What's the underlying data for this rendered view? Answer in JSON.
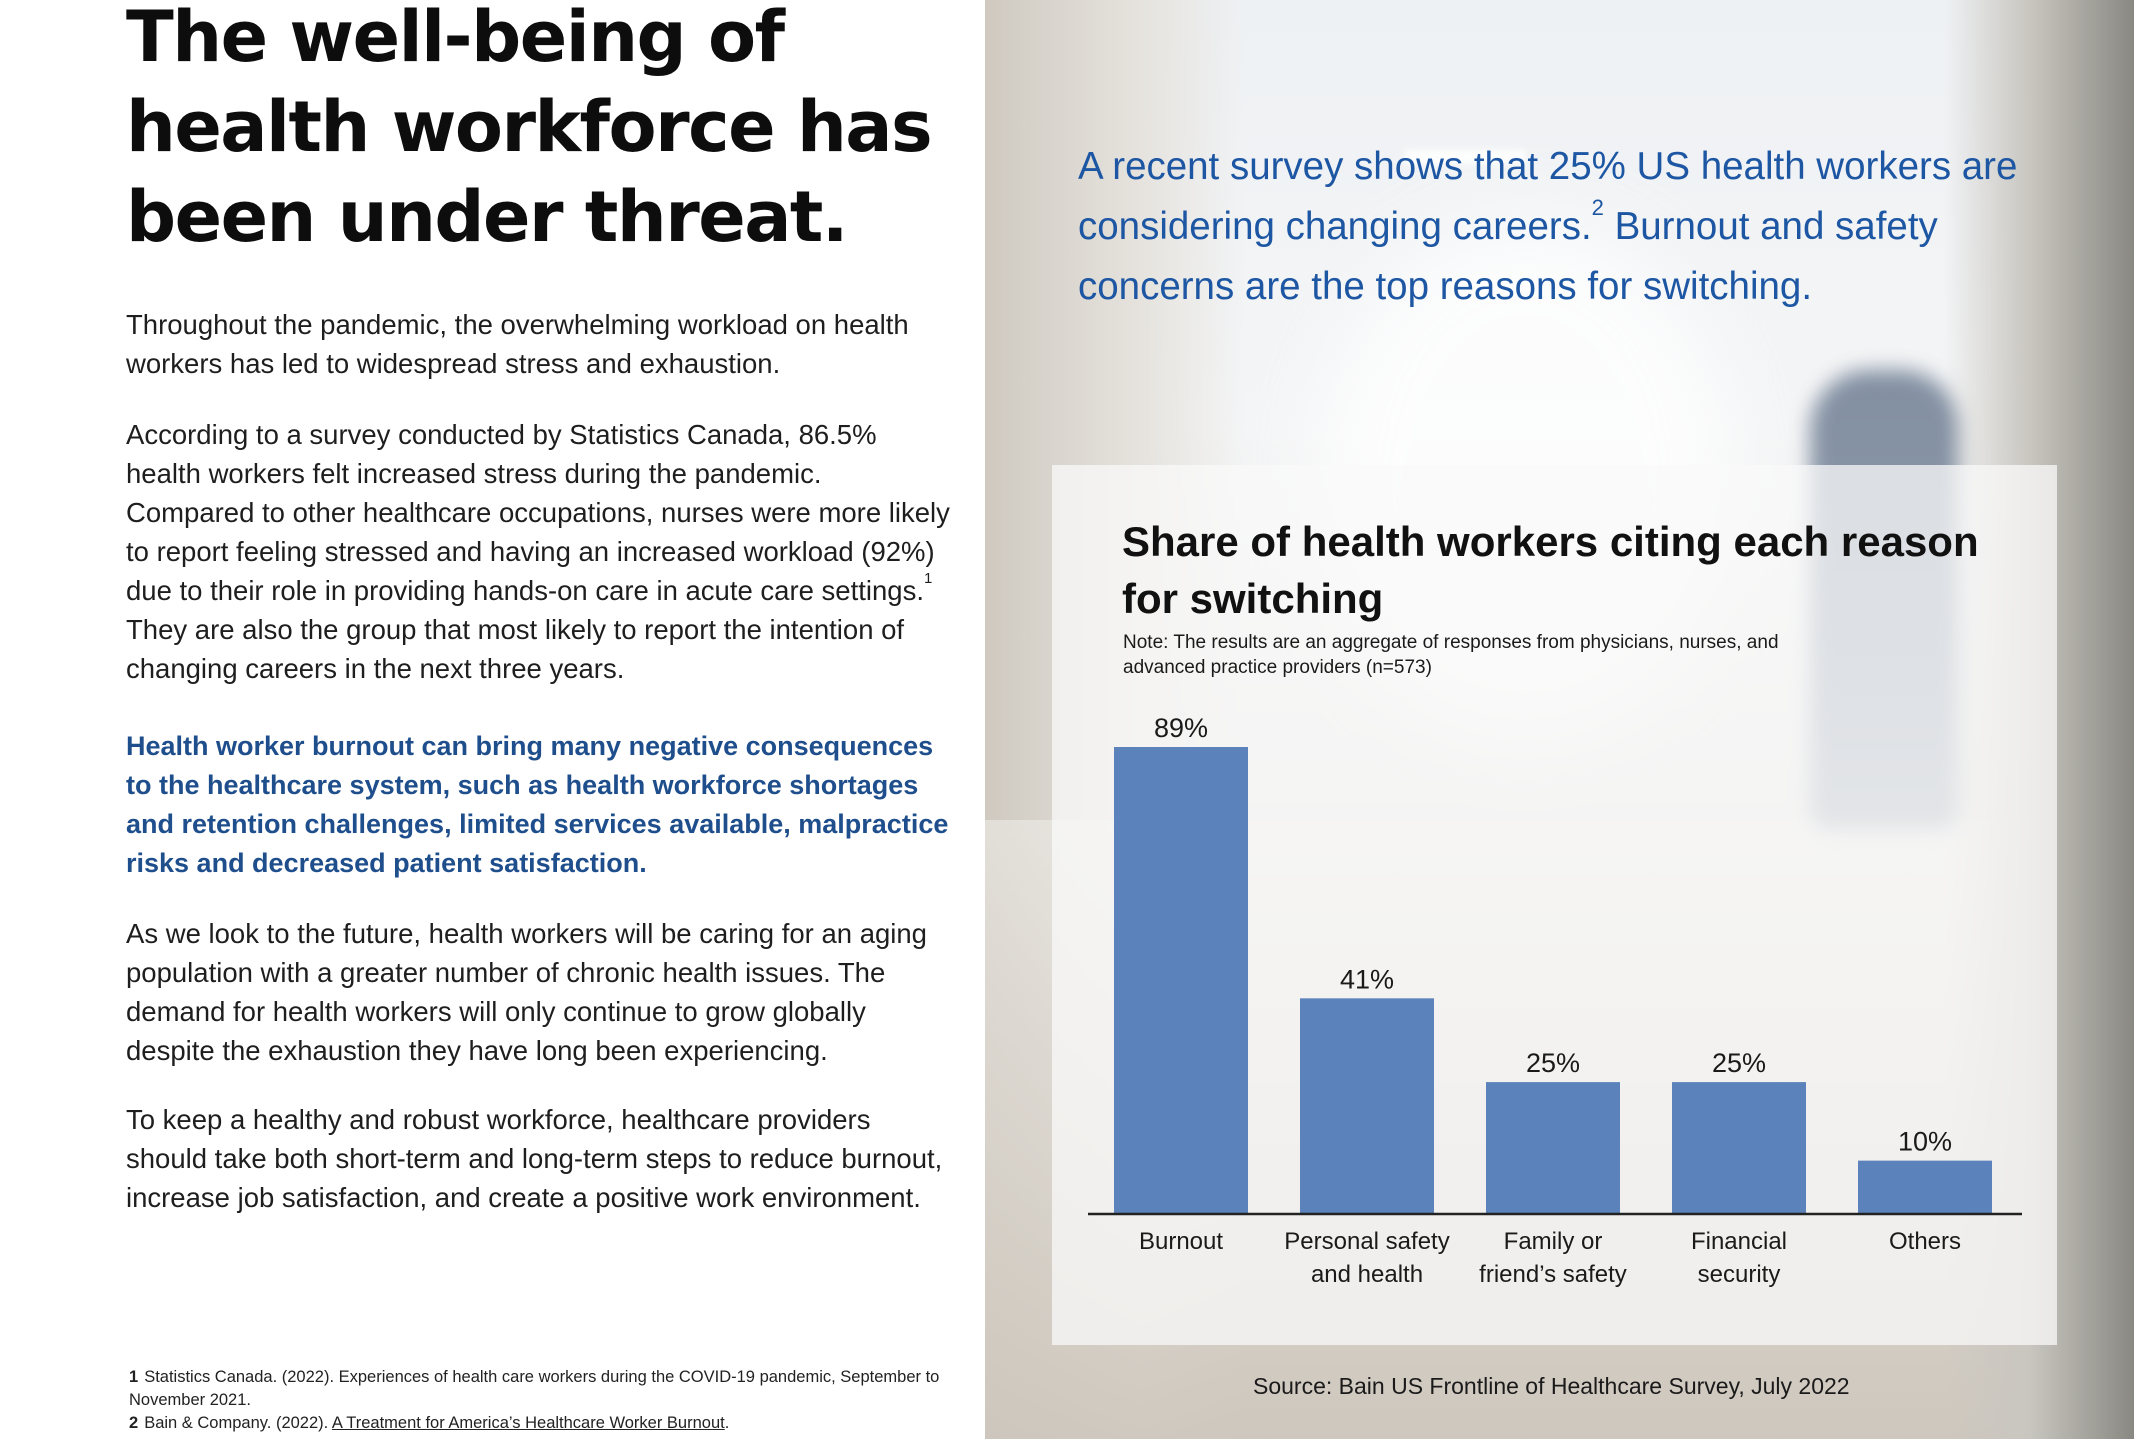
{
  "left": {
    "headline": "The well-being of health workforce has been under threat.",
    "p1": "Throughout the pandemic, the overwhelming workload on health workers has led to widespread stress and exhaustion.",
    "p2a": "According to a survey conducted by Statistics Canada, 86.5% health workers felt increased stress during the pandemic. Compared to other healthcare occupations, nurses were more likely to report feeling stressed and having an increased workload (92%) due to their role in providing hands-on care in acute care settings.",
    "p2_ref": "1",
    "p2b": " They are also the group that most likely to report the intention of changing careers in the next three years.",
    "p3": "Health worker burnout can bring many negative consequences to the healthcare system, such as health workforce shortages and retention challenges, limited services available, malpractice risks and decreased patient satisfaction.",
    "p4": "As we look to the future, health workers will be caring for an aging population with a greater number of chronic health issues. The demand for health workers will only continue to grow globally despite the exhaustion they have long been experiencing.",
    "p5": "To keep a healthy and robust workforce, healthcare providers should take both short-term and long-term steps to reduce burnout, increase job satisfaction, and create a positive work environment."
  },
  "footnotes": [
    {
      "num": "1",
      "text": "Statistics Canada. (2022). Experiences of health care workers during the COVID-19 pandemic, September to November 2021."
    },
    {
      "num": "2",
      "text_pre": "Bain & Company. (2022). ",
      "link": "A Treatment for America’s Healthcare Worker Burnout",
      "text_post": "."
    }
  ],
  "right": {
    "survey_text": "A recent survey shows that 25% US health workers are considering changing careers.",
    "survey_ref": "2",
    "survey_text2": " Burnout and safety concerns are the top reasons for switching.",
    "source": "Source: Bain US Frontline of Healthcare Survey, July 2022"
  },
  "colors": {
    "bar": "#5b82bb",
    "accent_blue": "#1d56a3",
    "paragraph_blue": "#1f4e8c"
  },
  "chart_data": {
    "type": "bar",
    "title": "Share of health workers citing each reason for switching",
    "note": "Note: The results are an aggregate of responses from physicians, nurses, and advanced practice providers (n=573)",
    "categories": [
      [
        "Burnout"
      ],
      [
        "Personal safety",
        "and health"
      ],
      [
        "Family or",
        "friend’s safety"
      ],
      [
        "Financial",
        "security"
      ],
      [
        "Others"
      ]
    ],
    "values": [
      89,
      41,
      25,
      25,
      10
    ],
    "value_labels": [
      "89%",
      "41%",
      "25%",
      "25%",
      "10%"
    ],
    "unit": "%",
    "ylim": [
      0,
      89
    ],
    "grid": false,
    "legend": "none"
  }
}
